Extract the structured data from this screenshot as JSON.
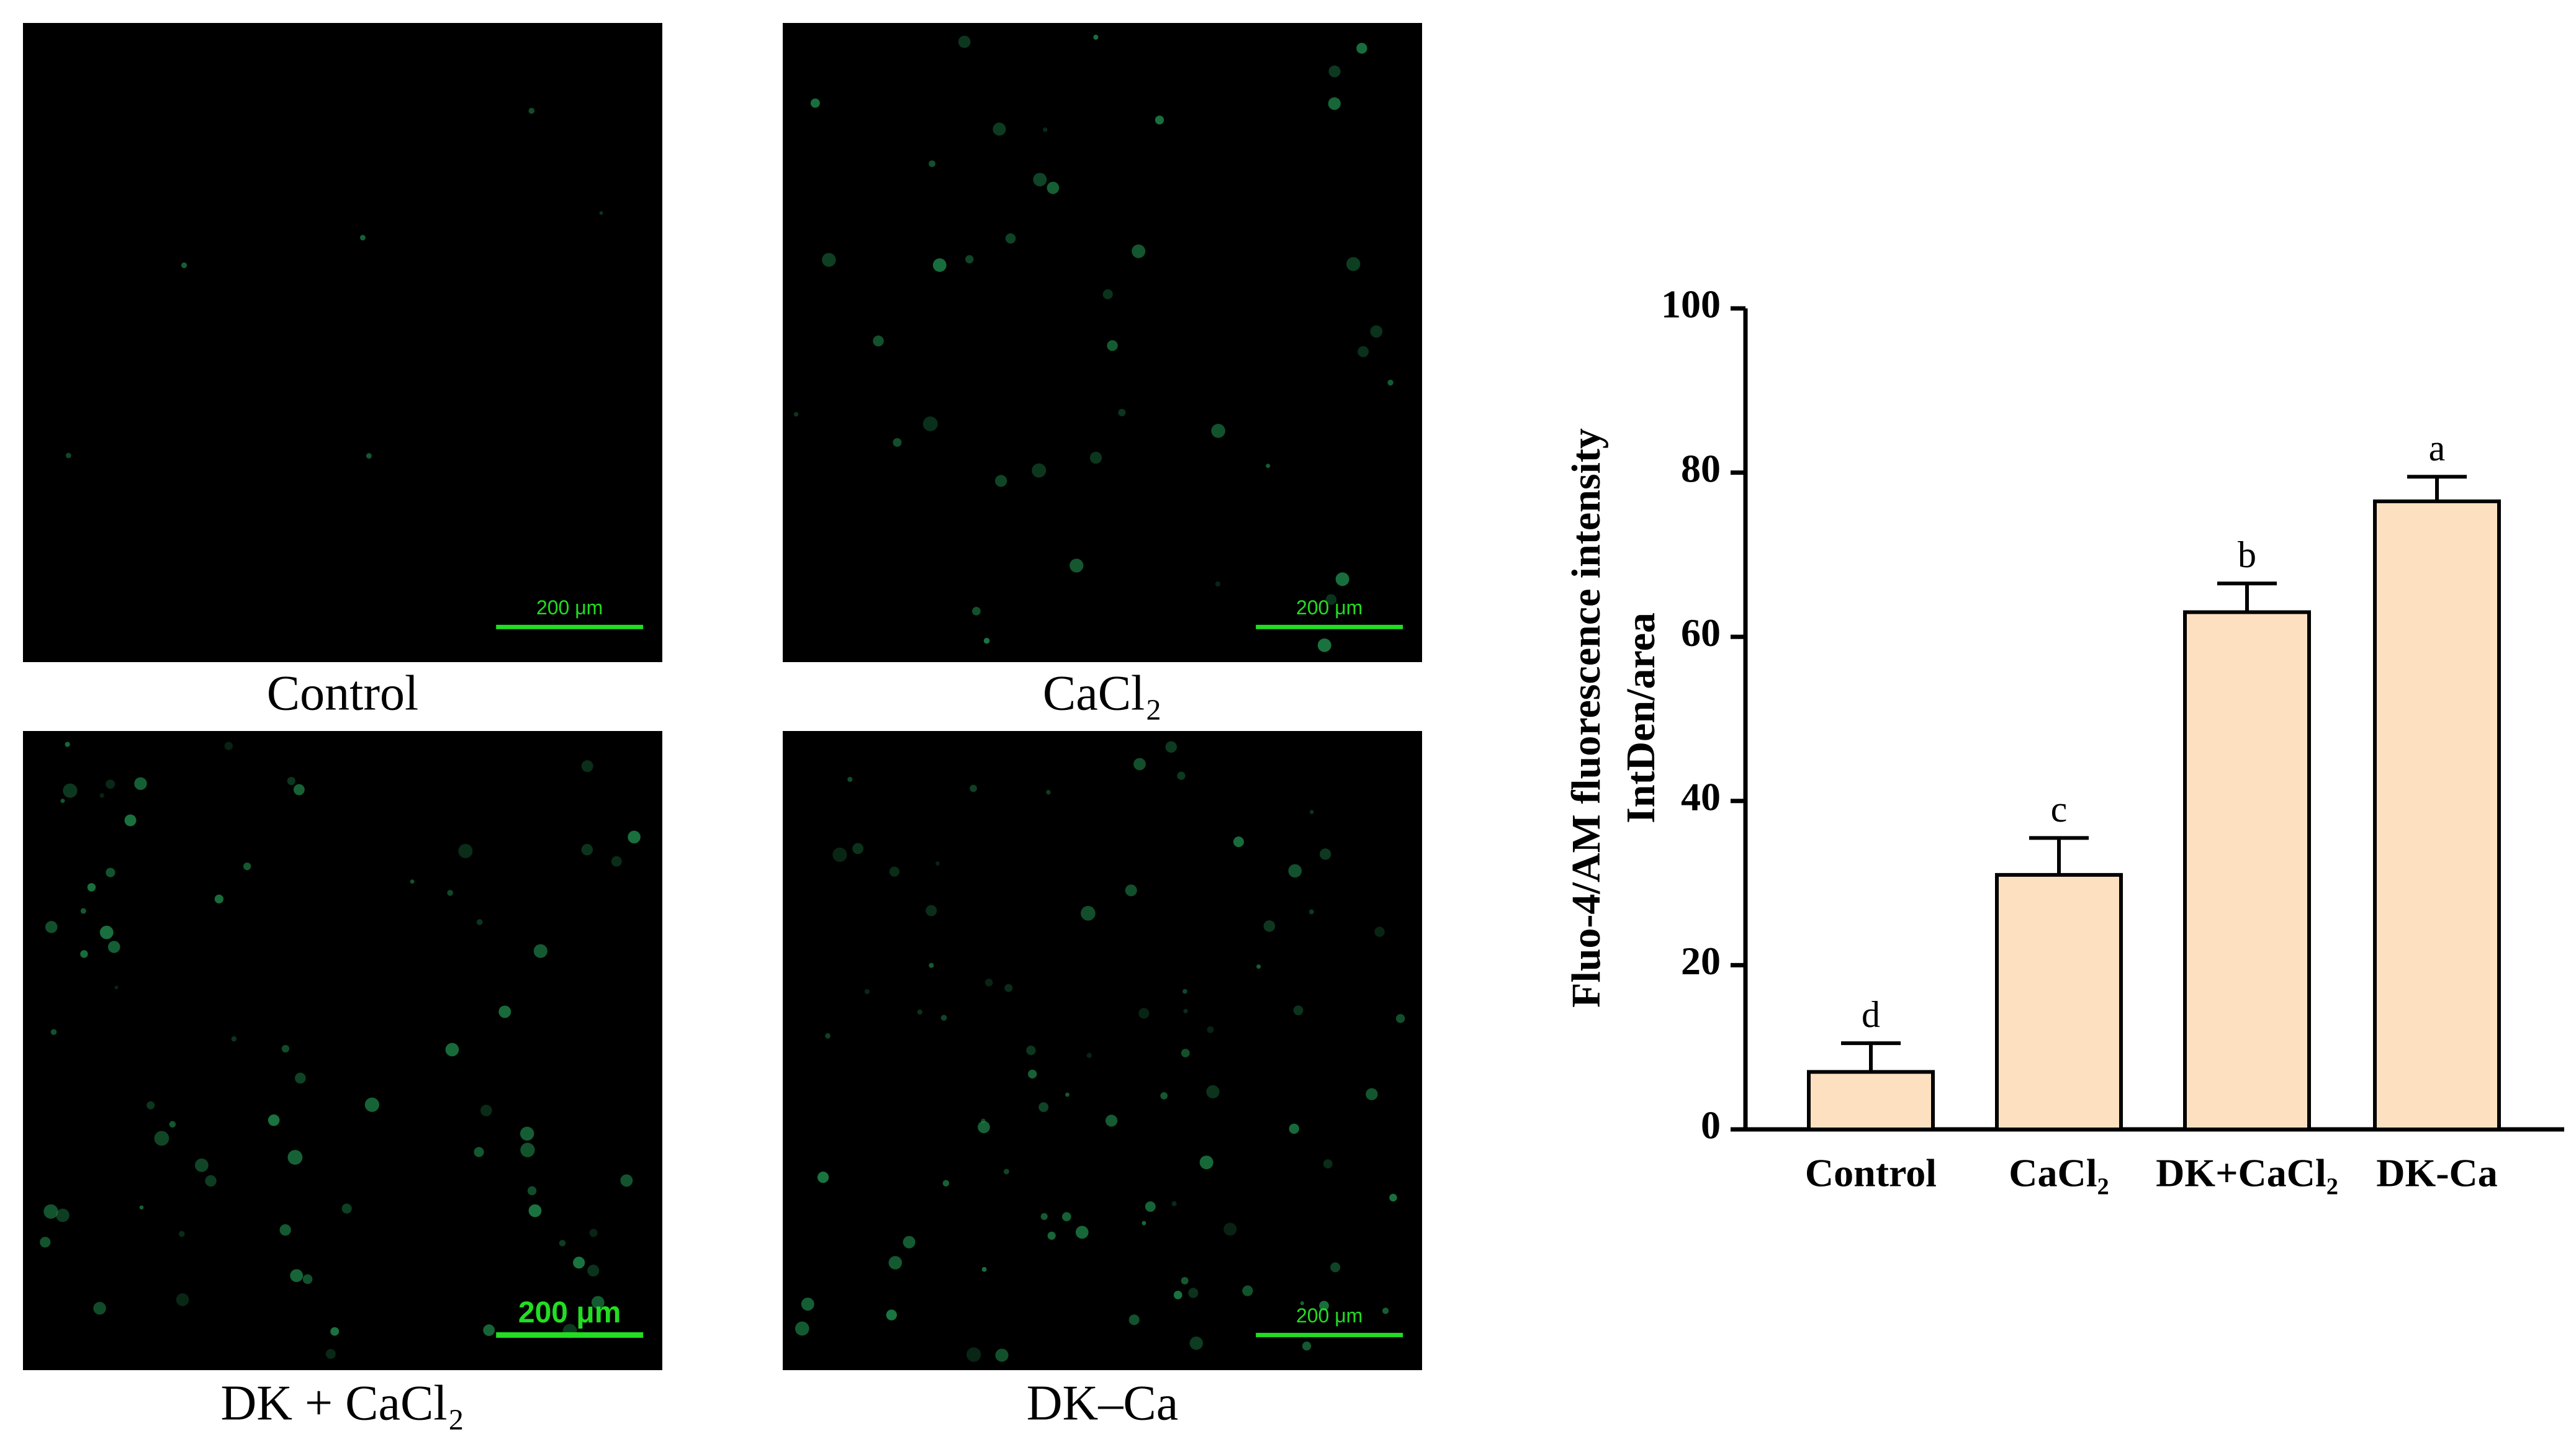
{
  "panels": [
    {
      "label": "Control",
      "scale_bar": "200 μm"
    },
    {
      "label": "CaCl₂",
      "scale_bar": "200 μm"
    },
    {
      "label": "DK + CaCl₂",
      "scale_bar": "200 μm"
    },
    {
      "label": "DK–Ca",
      "scale_bar": "200 μm"
    }
  ],
  "chart_data": {
    "type": "bar",
    "ylabel": [
      "Fluo-4/AM fluorescence intensity",
      "IntDen/area"
    ],
    "categories": [
      "Control",
      "CaCl₂",
      "DK+CaCl₂",
      "DK-Ca"
    ],
    "values": [
      7,
      31,
      63,
      76.5
    ],
    "errors": [
      3.5,
      4.5,
      3.5,
      3
    ],
    "annotations": [
      "d",
      "c",
      "b",
      "a"
    ],
    "color": "#fde0c0",
    "ylim": [
      0,
      100
    ],
    "yticks": [
      0,
      20,
      40,
      60,
      80,
      100
    ],
    "grid": false
  }
}
